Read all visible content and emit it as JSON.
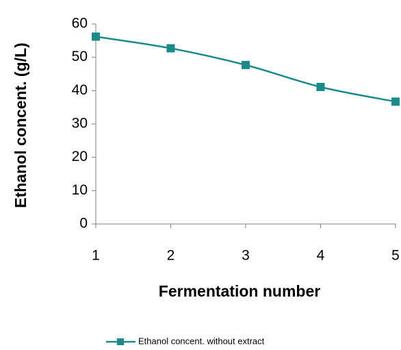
{
  "chart_data": {
    "type": "line",
    "x_label": "Fermentation number",
    "y_label": "Ethanol concent. (g/L)",
    "x": [
      1,
      2,
      3,
      4,
      5
    ],
    "series": [
      {
        "name": "Ethanol concent. without extract",
        "color": "#1b8a8a",
        "values": [
          56.2,
          52.7,
          47.7,
          41.1,
          36.7
        ]
      }
    ],
    "xlim": [
      1,
      5
    ],
    "xticks": [
      1,
      2,
      3,
      4,
      5
    ],
    "ylim": [
      0,
      60
    ],
    "yticks": [
      0,
      10,
      20,
      30,
      40,
      50,
      60
    ],
    "grid": false,
    "smooth": true,
    "legend": "bottom"
  }
}
